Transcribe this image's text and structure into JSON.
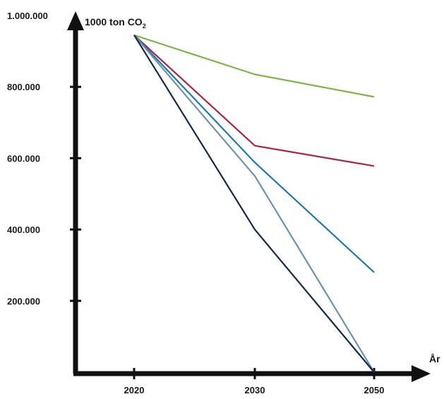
{
  "chart_data": {
    "type": "line",
    "x": [
      2020,
      2030,
      2050
    ],
    "x_tick_labels": [
      "2020",
      "2030",
      "2050"
    ],
    "xlabel": "År",
    "ylabel": "1000 ton CO",
    "ylabel_sub": "2",
    "ylim": [
      0,
      1000000
    ],
    "y_ticks": [
      200000,
      400000,
      600000,
      800000,
      1000000
    ],
    "y_tick_labels": [
      "200.000",
      "400.000",
      "600.000",
      "800.000",
      "1.000.000"
    ],
    "grid": false,
    "legend": "none",
    "series": [
      {
        "color": "#7ab648",
        "values": [
          945000,
          835000,
          772000
        ]
      },
      {
        "color": "#b0233f",
        "values": [
          945000,
          635000,
          578000
        ]
      },
      {
        "color": "#1f78b4",
        "values": [
          945000,
          588000,
          280000
        ]
      },
      {
        "color": "#6b93ad",
        "values": [
          945000,
          550000,
          0
        ]
      },
      {
        "color": "#13284b",
        "values": [
          945000,
          400000,
          0
        ]
      }
    ]
  }
}
